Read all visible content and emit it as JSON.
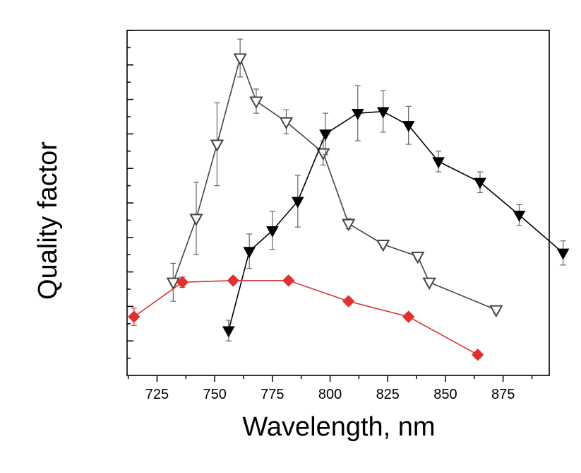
{
  "chart_data": {
    "type": "line",
    "title": "",
    "xlabel": "Wavelength, nm",
    "ylabel": "Quality factor",
    "xlim": [
      712,
      895
    ],
    "ylim": [
      0,
      10
    ],
    "x_ticks": [
      725,
      750,
      775,
      800,
      825,
      850,
      875
    ],
    "y_ticks": [
      1,
      2,
      3,
      4,
      5,
      6,
      7,
      8,
      9,
      10
    ],
    "y_tick_labels_shown": false,
    "grid": false,
    "legend": "none",
    "colors": {
      "axis": "#000000",
      "error_bar": "#666666",
      "open_series": "#444444",
      "filled_series": "#000000",
      "red_series": "#d63333",
      "red_marker": "#e03030"
    },
    "series": [
      {
        "name": "open triangles",
        "marker": "triangle-down-open",
        "color": "#444444",
        "x": [
          732,
          742,
          751,
          761,
          768,
          781,
          797,
          808,
          823,
          838,
          843,
          872
        ],
        "y": [
          2.7,
          4.55,
          6.7,
          9.2,
          7.95,
          7.35,
          6.45,
          4.4,
          3.8,
          3.45,
          2.7,
          1.9
        ],
        "err": [
          0.55,
          1.05,
          1.2,
          0.55,
          0.35,
          0.35,
          0.35,
          0.15,
          0.1,
          0.1,
          0.08,
          0.1
        ]
      },
      {
        "name": "filled triangles",
        "marker": "triangle-down-filled",
        "color": "#000000",
        "x": [
          756,
          765,
          775,
          786,
          798,
          812,
          823,
          834,
          847,
          865,
          882,
          901
        ],
        "y": [
          1.3,
          3.6,
          4.2,
          5.05,
          7.0,
          7.6,
          7.65,
          7.25,
          6.2,
          5.6,
          4.65,
          3.55
        ],
        "err": [
          0.3,
          0.5,
          0.55,
          0.75,
          0.6,
          0.8,
          0.6,
          0.55,
          0.3,
          0.3,
          0.3,
          0.35
        ]
      },
      {
        "name": "red diamonds",
        "marker": "diamond-filled",
        "color": "#e03030",
        "x": [
          715,
          736,
          758,
          782,
          808,
          834,
          864
        ],
        "y": [
          1.7,
          2.7,
          2.75,
          2.75,
          2.15,
          1.7,
          0.6
        ],
        "err": [
          0.25,
          0.15,
          0.1,
          0.1,
          0.1,
          0.1,
          0.1
        ]
      }
    ]
  }
}
